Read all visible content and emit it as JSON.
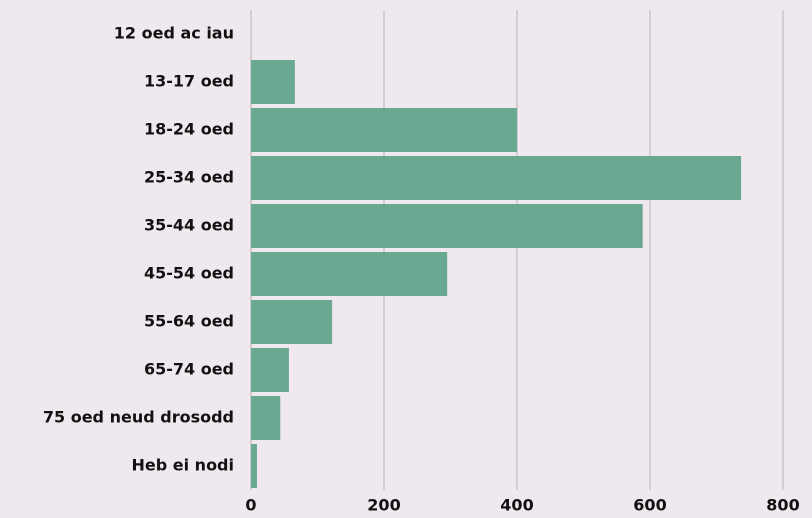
{
  "chart_data": {
    "type": "bar",
    "orientation": "horizontal",
    "categories": [
      "12 oed ac iau",
      "13-17 oed",
      "18-24 oed",
      "25-34 oed",
      "35-44 oed",
      "45-54 oed",
      "55-64 oed",
      "65-74 oed",
      "75 oed neud drosodd",
      "Heb ei nodi"
    ],
    "values": [
      0,
      66,
      400,
      737,
      589,
      295,
      122,
      57,
      44,
      9
    ],
    "color": "#6aa891",
    "xlim": [
      0,
      800
    ],
    "xticks": [
      0,
      200,
      400,
      600,
      800
    ],
    "grid": true
  }
}
